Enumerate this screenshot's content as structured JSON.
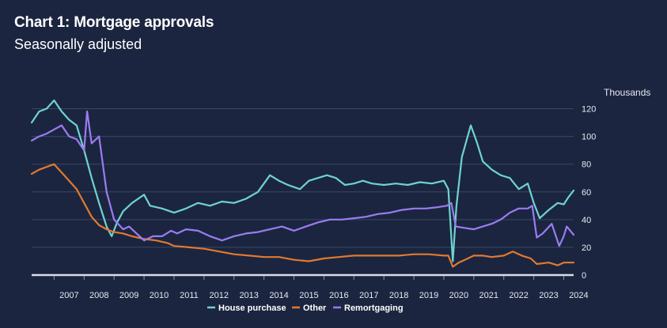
{
  "chart_data": {
    "type": "line",
    "title": "Chart 1: Mortgage approvals",
    "subtitle": "Seasonally adjusted",
    "ylabel": "Thousands",
    "xlabel": "",
    "ylim": [
      0,
      130
    ],
    "yticks": [
      0,
      20,
      40,
      60,
      80,
      100,
      120
    ],
    "xlim": [
      2006.25,
      2024.33
    ],
    "xticks": [
      2007,
      2008,
      2009,
      2010,
      2011,
      2012,
      2013,
      2014,
      2015,
      2016,
      2017,
      2018,
      2019,
      2020,
      2021,
      2022,
      2023,
      2024
    ],
    "grid": true,
    "legend": "bottom-center",
    "series": [
      {
        "name": "House purchase",
        "color": "#6fd3cf",
        "x": [
          2006.25,
          2006.5,
          2006.75,
          2007.0,
          2007.25,
          2007.5,
          2007.75,
          2008.0,
          2008.25,
          2008.5,
          2008.75,
          2008.92,
          2009.1,
          2009.3,
          2009.6,
          2010.0,
          2010.2,
          2010.6,
          2011.0,
          2011.4,
          2011.8,
          2012.2,
          2012.6,
          2013.0,
          2013.4,
          2013.8,
          2014.0,
          2014.2,
          2014.5,
          2014.8,
          2015.2,
          2015.5,
          2015.8,
          2016.1,
          2016.4,
          2016.7,
          2017.0,
          2017.3,
          2017.6,
          2018.0,
          2018.4,
          2018.8,
          2019.2,
          2019.6,
          2020.0,
          2020.15,
          2020.3,
          2020.42,
          2020.6,
          2020.9,
          2021.1,
          2021.3,
          2021.6,
          2021.9,
          2022.2,
          2022.5,
          2022.8,
          2023.0,
          2023.2,
          2023.5,
          2023.8,
          2024.0,
          2024.15,
          2024.33
        ],
        "values": [
          110,
          118,
          120,
          126,
          118,
          112,
          108,
          90,
          70,
          52,
          35,
          28,
          38,
          46,
          52,
          58,
          50,
          48,
          45,
          48,
          52,
          50,
          53,
          52,
          55,
          60,
          66,
          72,
          68,
          65,
          62,
          68,
          70,
          72,
          70,
          65,
          66,
          68,
          66,
          65,
          66,
          65,
          67,
          66,
          68,
          62,
          10,
          50,
          85,
          108,
          96,
          82,
          76,
          72,
          70,
          62,
          66,
          52,
          41,
          47,
          52,
          51,
          56,
          61
        ]
      },
      {
        "name": "Other",
        "color": "#e07a2f",
        "x": [
          2006.25,
          2006.5,
          2006.75,
          2007.0,
          2007.25,
          2007.5,
          2007.75,
          2008.0,
          2008.25,
          2008.5,
          2008.75,
          2009.0,
          2009.3,
          2009.6,
          2010.0,
          2010.4,
          2010.8,
          2011.0,
          2011.5,
          2012.0,
          2012.5,
          2013.0,
          2013.5,
          2014.0,
          2014.5,
          2015.0,
          2015.5,
          2016.0,
          2016.5,
          2017.0,
          2017.5,
          2018.0,
          2018.5,
          2019.0,
          2019.5,
          2020.0,
          2020.15,
          2020.3,
          2020.5,
          2020.8,
          2021.0,
          2021.3,
          2021.6,
          2022.0,
          2022.3,
          2022.6,
          2022.9,
          2023.1,
          2023.5,
          2023.8,
          2024.0,
          2024.33
        ],
        "values": [
          73,
          76,
          78,
          80,
          74,
          68,
          62,
          52,
          42,
          36,
          33,
          31,
          30,
          28,
          26,
          25,
          23,
          21,
          20,
          19,
          17,
          15,
          14,
          13,
          13,
          11,
          10,
          12,
          13,
          14,
          14,
          14,
          14,
          15,
          15,
          14,
          14,
          6,
          9,
          12,
          14,
          14,
          13,
          14,
          17,
          14,
          12,
          8,
          9,
          7,
          9,
          9
        ]
      },
      {
        "name": "Remortgaging",
        "color": "#9b7cf2",
        "x": [
          2006.25,
          2006.5,
          2006.75,
          2007.0,
          2007.25,
          2007.5,
          2007.75,
          2008.0,
          2008.1,
          2008.25,
          2008.5,
          2008.75,
          2009.0,
          2009.3,
          2009.5,
          2009.75,
          2010.0,
          2010.3,
          2010.6,
          2010.9,
          2011.1,
          2011.4,
          2011.8,
          2012.2,
          2012.6,
          2013.0,
          2013.4,
          2013.8,
          2014.2,
          2014.6,
          2015.0,
          2015.4,
          2015.8,
          2016.2,
          2016.6,
          2017.0,
          2017.4,
          2017.8,
          2018.2,
          2018.6,
          2019.0,
          2019.4,
          2019.8,
          2020.1,
          2020.25,
          2020.4,
          2020.7,
          2021.0,
          2021.3,
          2021.6,
          2021.9,
          2022.2,
          2022.5,
          2022.8,
          2022.95,
          2023.1,
          2023.3,
          2023.6,
          2023.85,
          2024.0,
          2024.1,
          2024.33
        ],
        "values": [
          97,
          100,
          102,
          105,
          108,
          100,
          98,
          90,
          118,
          95,
          100,
          60,
          40,
          33,
          35,
          30,
          25,
          28,
          28,
          32,
          30,
          33,
          32,
          28,
          25,
          28,
          30,
          31,
          33,
          35,
          32,
          35,
          38,
          40,
          40,
          41,
          42,
          44,
          45,
          47,
          48,
          48,
          49,
          50,
          52,
          35,
          34,
          33,
          35,
          37,
          40,
          45,
          48,
          48,
          50,
          27,
          30,
          37,
          21,
          28,
          35,
          29
        ]
      }
    ]
  }
}
